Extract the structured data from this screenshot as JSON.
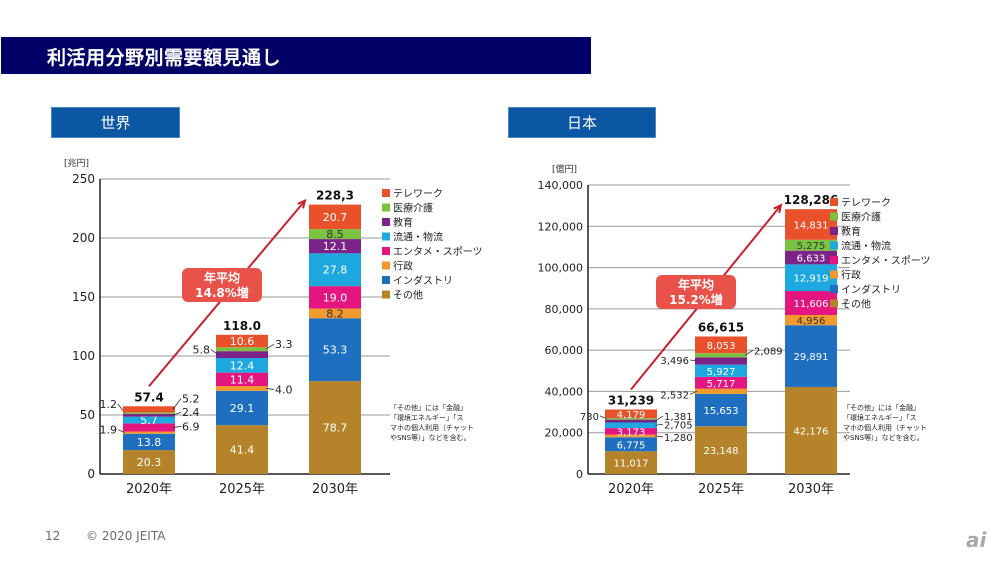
{
  "header": {
    "title": "利活用分野別需要額見通し"
  },
  "footer": {
    "page_number": "12",
    "copyright": "© 2020 JEITA",
    "logo": "ai"
  },
  "chart_data": [
    {
      "type": "bar",
      "stacked": true,
      "title": "世界",
      "ylabel": "[兆円]",
      "ylim": [
        0,
        250
      ],
      "yticks": [
        0,
        50,
        100,
        150,
        200,
        250
      ],
      "ytick_labels": [
        "0",
        "50",
        "100",
        "150",
        "200",
        "250"
      ],
      "categories": [
        "2020年",
        "2025年",
        "2030年"
      ],
      "totals": [
        57.4,
        118.0,
        228.3
      ],
      "total_labels": [
        "57.4",
        "118.0",
        "228,3"
      ],
      "series": [
        {
          "name": "その他",
          "color": "#b5842a",
          "values": [
            20.3,
            41.4,
            78.7
          ],
          "labels": [
            "20.3",
            "41.4",
            "78.7"
          ]
        },
        {
          "name": "インダストリ",
          "color": "#1e6fbf",
          "values": [
            13.8,
            29.1,
            53.3
          ],
          "labels": [
            "13.8",
            "29.1",
            "53.3"
          ]
        },
        {
          "name": "行政",
          "color": "#f39a2e",
          "values": [
            1.9,
            4.0,
            8.2
          ],
          "labels": [
            "1.9",
            "4.0",
            "8.2"
          ]
        },
        {
          "name": "エンタメ・スポーツ",
          "color": "#e4157f",
          "values": [
            6.9,
            11.4,
            19.0
          ],
          "labels": [
            "6.9",
            "11.4",
            "19.0"
          ]
        },
        {
          "name": "流通・物流",
          "color": "#1ea8e0",
          "values": [
            5.7,
            12.4,
            27.8
          ],
          "labels": [
            "5.7",
            "12.4",
            "27.8"
          ]
        },
        {
          "name": "教育",
          "color": "#7b2388",
          "values": [
            2.4,
            5.8,
            12.1
          ],
          "labels": [
            "2.4",
            "5.8",
            "12.1"
          ]
        },
        {
          "name": "医療介護",
          "color": "#7cc242",
          "values": [
            1.2,
            3.3,
            8.5
          ],
          "labels": [
            "1.2",
            "3.3",
            "8.5"
          ]
        },
        {
          "name": "テレワーク",
          "color": "#e8512a",
          "values": [
            5.2,
            10.6,
            20.7
          ],
          "labels": [
            "5.2",
            "10.6",
            "20.7"
          ]
        }
      ],
      "legend": [
        "テレワーク",
        "医療介護",
        "教育",
        "流通・物流",
        "エンタメ・スポーツ",
        "行政",
        "インダストリ",
        "その他"
      ],
      "legend_position": "right",
      "annotation": {
        "text": "年平均\n14.8%増",
        "line1": "年平均",
        "line2": "14.8%増"
      },
      "note": "「その他」には「金融」\n「環境エネルギー」「ス\nマホの個人利用（チャット\nやSNS等）」などを含む。",
      "grid": true
    },
    {
      "type": "bar",
      "stacked": true,
      "title": "日本",
      "ylabel": "[億円]",
      "ylim": [
        0,
        140000
      ],
      "yticks": [
        0,
        20000,
        40000,
        60000,
        80000,
        100000,
        120000,
        140000
      ],
      "ytick_labels": [
        "0",
        "20,000",
        "40,000",
        "60,000",
        "80,000",
        "100,000",
        "120,000",
        "140,000"
      ],
      "categories": [
        "2020年",
        "2025年",
        "2030年"
      ],
      "totals": [
        31239,
        66615,
        128286
      ],
      "total_labels": [
        "31,239",
        "66,615",
        "128,286"
      ],
      "series": [
        {
          "name": "その他",
          "color": "#b5842a",
          "values": [
            11017,
            23148,
            42176
          ],
          "labels": [
            "11,017",
            "23,148",
            "42,176"
          ]
        },
        {
          "name": "インダストリ",
          "color": "#1e6fbf",
          "values": [
            6775,
            15653,
            29891
          ],
          "labels": [
            "6,775",
            "15,653",
            "29,891"
          ]
        },
        {
          "name": "行政",
          "color": "#f39a2e",
          "values": [
            1280,
            2532,
            4956
          ],
          "labels": [
            "1,280",
            "2,532",
            "4,956"
          ]
        },
        {
          "name": "エンタメ・スポーツ",
          "color": "#e4157f",
          "values": [
            3173,
            5717,
            11606
          ],
          "labels": [
            "3,173",
            "5,717",
            "11,606"
          ]
        },
        {
          "name": "流通・物流",
          "color": "#1ea8e0",
          "values": [
            2705,
            5927,
            12919
          ],
          "labels": [
            "2,705",
            "5,927",
            "12,919"
          ]
        },
        {
          "name": "教育",
          "color": "#7b2388",
          "values": [
            1381,
            3496,
            6633
          ],
          "labels": [
            "1,381",
            "3,496",
            "6,633"
          ]
        },
        {
          "name": "医療介護",
          "color": "#7cc242",
          "values": [
            730,
            2089,
            5275
          ],
          "labels": [
            "730",
            "2,089",
            "5,275"
          ]
        },
        {
          "name": "テレワーク",
          "color": "#e8512a",
          "values": [
            4179,
            8053,
            14831
          ],
          "labels": [
            "4,179",
            "8,053",
            "14,831"
          ]
        }
      ],
      "legend": [
        "テレワーク",
        "医療介護",
        "教育",
        "流通・物流",
        "エンタメ・スポーツ",
        "行政",
        "インダストリ",
        "その他"
      ],
      "legend_position": "right",
      "annotation": {
        "text": "年平均\n15.2%増",
        "line1": "年平均",
        "line2": "15.2%増"
      },
      "note": "「その他」には「金融」\n「環境エネルギー」「ス\nマホの個人利用（チャット\nやSNS等）」などを含む。",
      "grid": true
    }
  ]
}
